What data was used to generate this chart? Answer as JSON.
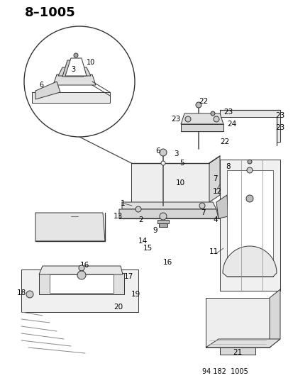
{
  "title": "8–1005",
  "footer": "94 182  1005",
  "bg_color": "#ffffff",
  "text_color": "#000000",
  "title_fontsize": 13,
  "label_fontsize": 7.5,
  "footer_fontsize": 7
}
